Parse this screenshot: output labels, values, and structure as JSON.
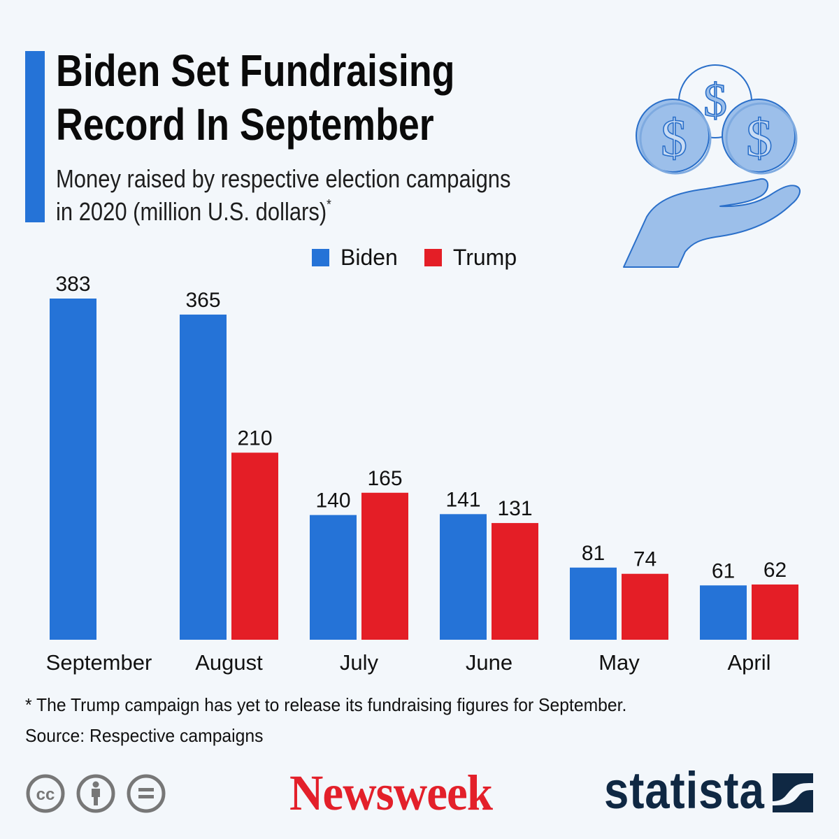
{
  "header": {
    "title_lines": [
      "Biden Set Fundraising",
      "Record In September"
    ],
    "subtitle_lines": [
      "Money raised by respective election campaigns",
      "in 2020 (million U.S. dollars)"
    ],
    "subtitle_marker": "*",
    "accent_color": "#2573d7"
  },
  "illustration": {
    "icon": "hand-holding-coins-icon",
    "glyph": "$"
  },
  "colors": {
    "biden": "#2573d7",
    "trump": "#e41e26",
    "text": "#111111",
    "background": "#f3f7fb"
  },
  "chart_data": {
    "type": "bar",
    "title": "Biden Set Fundraising Record In September",
    "subtitle": "Money raised by respective election campaigns in 2020 (million U.S. dollars)*",
    "categories": [
      "September",
      "August",
      "July",
      "June",
      "May",
      "April"
    ],
    "series": [
      {
        "name": "Biden",
        "color": "#2573d7",
        "values": [
          383,
          365,
          140,
          141,
          81,
          61
        ]
      },
      {
        "name": "Trump",
        "color": "#e41e26",
        "values": [
          null,
          210,
          165,
          131,
          74,
          62
        ]
      }
    ],
    "xlabel": "",
    "ylabel": "",
    "ylim": [
      0,
      383
    ],
    "grid": false,
    "legend": "top-center",
    "data_labels": true
  },
  "legend": [
    {
      "label": "Biden",
      "color": "#2573d7"
    },
    {
      "label": "Trump",
      "color": "#e41e26"
    }
  ],
  "footer": {
    "note": "* The Trump campaign has yet to release its fundraising figures for September.",
    "source": "Source: Respective campaigns",
    "license_icons": [
      "cc-icon",
      "attribution-icon",
      "no-derivatives-icon"
    ],
    "publisher": "Newsweek",
    "brand": "statista"
  }
}
